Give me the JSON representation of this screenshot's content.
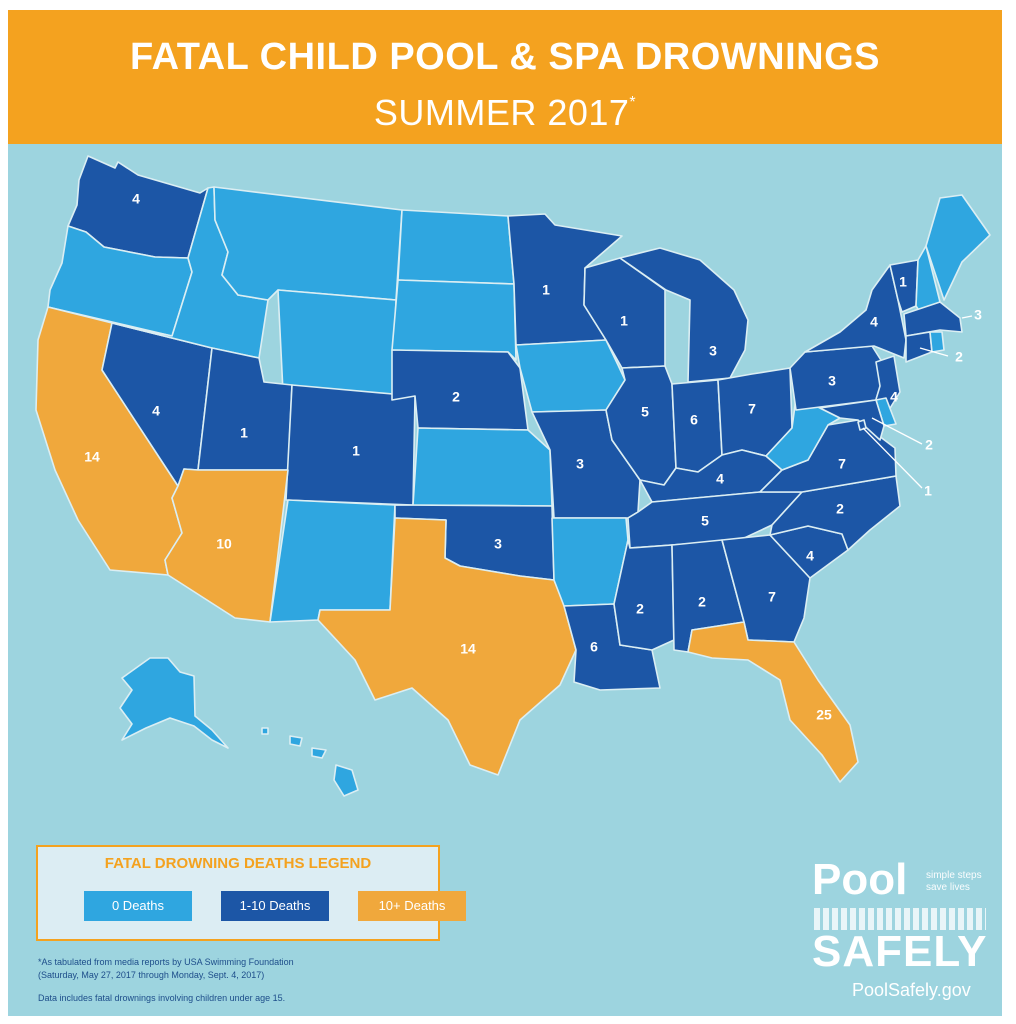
{
  "header": {
    "title": "FATAL CHILD POOL & SPA DROWNINGS",
    "subtitle": "SUMMER 2017",
    "subtitle_mark": "*"
  },
  "colors": {
    "banner": "#f4a21f",
    "background": "#9dd4df",
    "zero": "#2fa6e0",
    "low": "#1c56a6",
    "high": "#f0a83c"
  },
  "map": {
    "states": [
      {
        "id": "WA",
        "category": "low",
        "deaths": "4"
      },
      {
        "id": "OR",
        "category": "zero",
        "deaths": ""
      },
      {
        "id": "CA",
        "category": "high",
        "deaths": "14"
      },
      {
        "id": "NV",
        "category": "low",
        "deaths": "4"
      },
      {
        "id": "ID",
        "category": "zero",
        "deaths": ""
      },
      {
        "id": "MT",
        "category": "zero",
        "deaths": ""
      },
      {
        "id": "WY",
        "category": "zero",
        "deaths": ""
      },
      {
        "id": "UT",
        "category": "low",
        "deaths": "1"
      },
      {
        "id": "CO",
        "category": "low",
        "deaths": "1"
      },
      {
        "id": "AZ",
        "category": "high",
        "deaths": "10"
      },
      {
        "id": "NM",
        "category": "zero",
        "deaths": ""
      },
      {
        "id": "ND",
        "category": "zero",
        "deaths": ""
      },
      {
        "id": "SD",
        "category": "zero",
        "deaths": ""
      },
      {
        "id": "NE",
        "category": "low",
        "deaths": "2"
      },
      {
        "id": "KS",
        "category": "zero",
        "deaths": ""
      },
      {
        "id": "OK",
        "category": "low",
        "deaths": "3"
      },
      {
        "id": "TX",
        "category": "high",
        "deaths": "14"
      },
      {
        "id": "MN",
        "category": "low",
        "deaths": "1"
      },
      {
        "id": "IA",
        "category": "zero",
        "deaths": ""
      },
      {
        "id": "MO",
        "category": "low",
        "deaths": "3"
      },
      {
        "id": "AR",
        "category": "zero",
        "deaths": ""
      },
      {
        "id": "LA",
        "category": "low",
        "deaths": "6"
      },
      {
        "id": "WI",
        "category": "low",
        "deaths": "1"
      },
      {
        "id": "IL",
        "category": "low",
        "deaths": "5"
      },
      {
        "id": "MI",
        "category": "low",
        "deaths": "3"
      },
      {
        "id": "IN",
        "category": "low",
        "deaths": "6"
      },
      {
        "id": "OH",
        "category": "low",
        "deaths": "7"
      },
      {
        "id": "KY",
        "category": "low",
        "deaths": "4"
      },
      {
        "id": "TN",
        "category": "low",
        "deaths": "5"
      },
      {
        "id": "MS",
        "category": "low",
        "deaths": "2"
      },
      {
        "id": "AL",
        "category": "low",
        "deaths": "2"
      },
      {
        "id": "GA",
        "category": "low",
        "deaths": "7"
      },
      {
        "id": "FL",
        "category": "high",
        "deaths": "25"
      },
      {
        "id": "SC",
        "category": "low",
        "deaths": "4"
      },
      {
        "id": "NC",
        "category": "low",
        "deaths": "2"
      },
      {
        "id": "VA",
        "category": "low",
        "deaths": "7"
      },
      {
        "id": "WV",
        "category": "zero",
        "deaths": ""
      },
      {
        "id": "PA",
        "category": "low",
        "deaths": "3"
      },
      {
        "id": "NY",
        "category": "low",
        "deaths": "4"
      },
      {
        "id": "VT",
        "category": "low",
        "deaths": "1"
      },
      {
        "id": "NH",
        "category": "zero",
        "deaths": ""
      },
      {
        "id": "ME",
        "category": "zero",
        "deaths": ""
      },
      {
        "id": "MA",
        "category": "low",
        "deaths": "3"
      },
      {
        "id": "CT",
        "category": "low",
        "deaths": "2"
      },
      {
        "id": "RI",
        "category": "zero",
        "deaths": ""
      },
      {
        "id": "NJ",
        "category": "low",
        "deaths": "4"
      },
      {
        "id": "DE",
        "category": "zero",
        "deaths": ""
      },
      {
        "id": "MD",
        "category": "low",
        "deaths": "2"
      },
      {
        "id": "DC",
        "category": "low",
        "deaths": "1"
      },
      {
        "id": "AK",
        "category": "zero",
        "deaths": ""
      },
      {
        "id": "HI",
        "category": "zero",
        "deaths": ""
      }
    ]
  },
  "legend": {
    "title": "FATAL DROWNING DEATHS LEGEND",
    "items": [
      {
        "label": "0 Deaths",
        "color": "#2fa6e0"
      },
      {
        "label": "1-10 Deaths",
        "color": "#1c56a6"
      },
      {
        "label": "10+ Deaths",
        "color": "#f0a83c"
      }
    ]
  },
  "footnote": {
    "line1": "*As tabulated from media reports by USA Swimming Foundation",
    "line2": "(Saturday, May 27, 2017 through Monday, Sept. 4, 2017)",
    "line3": "Data includes fatal drownings involving children under age 15."
  },
  "brand": {
    "pool": "Pool",
    "tagline1": "simple steps",
    "tagline2": "save lives",
    "safely": "SAFELY",
    "url": "PoolSafely.gov"
  }
}
